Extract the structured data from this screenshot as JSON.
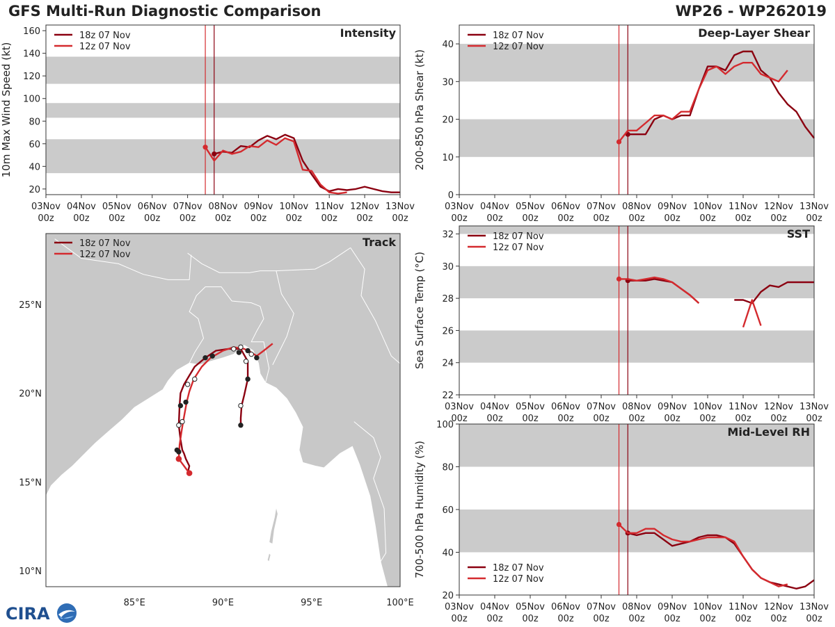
{
  "header": {
    "title": "GFS Multi-Run Diagnostic Comparison",
    "storm": "WP26 - WP262019"
  },
  "colors": {
    "run_18z": "#8b0010",
    "run_12z": "#d42a2e",
    "band": "#cbcbcb",
    "land": "#c8c8c8",
    "marker_dark": "#222222",
    "marker_light": "#ffffff"
  },
  "logo_text": "CIRA",
  "runs": [
    "18z 07 Nov",
    "12z 07 Nov"
  ],
  "time_axis": {
    "ticks": [
      "03Nov",
      "04Nov",
      "05Nov",
      "06Nov",
      "07Nov",
      "08Nov",
      "09Nov",
      "10Nov",
      "11Nov",
      "12Nov",
      "13Nov"
    ],
    "sub": "00z",
    "init_lines": [
      4.5,
      4.75
    ]
  },
  "chart_data": [
    {
      "id": "intensity",
      "type": "line",
      "title": "Intensity",
      "ylabel": "10m Max Wind Speed (kt)",
      "ylim": [
        15,
        165
      ],
      "yticks": [
        20,
        40,
        60,
        80,
        100,
        120,
        140,
        160
      ],
      "bands": [
        [
          34,
          64
        ],
        [
          83,
          96
        ],
        [
          113,
          137
        ]
      ],
      "legend": "top-left",
      "series": [
        {
          "name": "18z 07 Nov",
          "x": [
            4.75,
            5.0,
            5.25,
            5.5,
            5.75,
            6.0,
            6.25,
            6.5,
            6.75,
            7.0,
            7.25,
            7.5,
            7.75,
            8.0,
            8.25,
            8.5,
            8.75,
            9.0,
            9.25,
            9.5,
            9.75,
            10.0
          ],
          "y": [
            51,
            53,
            52,
            58,
            57,
            63,
            67,
            64,
            68,
            65,
            45,
            33,
            22,
            18,
            20,
            19,
            20,
            22,
            20,
            18,
            17,
            17
          ]
        },
        {
          "name": "12z 07 Nov",
          "x": [
            4.5,
            4.75,
            5.0,
            5.25,
            5.5,
            5.75,
            6.0,
            6.25,
            6.5,
            6.75,
            7.0,
            7.25,
            7.5,
            7.75,
            8.0,
            8.25,
            8.5
          ],
          "y": [
            57,
            45,
            54,
            51,
            53,
            58,
            57,
            63,
            59,
            65,
            62,
            37,
            36,
            24,
            17,
            16,
            17
          ]
        }
      ]
    },
    {
      "id": "shear",
      "type": "line",
      "title": "Deep-Layer Shear",
      "ylabel": "200-850 hPa Shear (kt)",
      "ylim": [
        0,
        45
      ],
      "yticks": [
        0,
        10,
        20,
        30,
        40
      ],
      "bands": [
        [
          10,
          20
        ],
        [
          30,
          40
        ]
      ],
      "legend": "top-left",
      "series": [
        {
          "name": "18z 07 Nov",
          "x": [
            4.75,
            5.0,
            5.25,
            5.5,
            5.75,
            6.0,
            6.25,
            6.5,
            6.75,
            7.0,
            7.25,
            7.5,
            7.75,
            8.0,
            8.25,
            8.5,
            8.75,
            9.0,
            9.25,
            9.5,
            9.75,
            10.0
          ],
          "y": [
            16,
            16,
            16,
            20,
            21,
            20,
            21,
            21,
            28,
            34,
            34,
            33,
            37,
            38,
            38,
            33,
            31,
            27,
            24,
            22,
            18,
            15
          ]
        },
        {
          "name": "12z 07 Nov",
          "x": [
            4.5,
            4.75,
            5.0,
            5.25,
            5.5,
            5.75,
            6.0,
            6.25,
            6.5,
            6.75,
            7.0,
            7.25,
            7.5,
            7.75,
            8.0,
            8.25,
            8.5,
            8.75,
            9.0,
            9.25
          ],
          "y": [
            14,
            17,
            17,
            19,
            21,
            21,
            20,
            22,
            22,
            28,
            33,
            34,
            32,
            34,
            35,
            35,
            32,
            31,
            30,
            33
          ]
        }
      ]
    },
    {
      "id": "sst",
      "type": "line",
      "title": "SST",
      "ylabel": "Sea Surface Temp (°C)",
      "ylim": [
        22,
        32.5
      ],
      "yticks": [
        22,
        24,
        26,
        28,
        30,
        32
      ],
      "bands": [
        [
          24,
          26
        ],
        [
          28,
          30
        ],
        [
          32,
          32.5
        ]
      ],
      "legend": "top-left",
      "series": [
        {
          "name": "18z 07 Nov",
          "segments": [
            {
              "x": [
                4.75,
                5.0,
                5.25,
                5.5,
                5.75,
                6.0,
                6.25,
                6.5,
                6.75
              ],
              "y": [
                29.1,
                29.1,
                29.1,
                29.2,
                29.1,
                29.0,
                28.6,
                28.2,
                27.7
              ]
            },
            {
              "x": [
                7.75,
                8.0,
                8.25,
                8.5,
                8.75,
                9.0,
                9.25,
                9.5,
                9.75,
                10.0
              ],
              "y": [
                27.9,
                27.9,
                27.7,
                28.4,
                28.8,
                28.7,
                29.0,
                29.0,
                29.0,
                29.0
              ]
            }
          ]
        },
        {
          "name": "12z 07 Nov",
          "segments": [
            {
              "x": [
                4.5,
                4.75,
                5.0,
                5.25,
                5.5,
                5.75,
                6.0,
                6.25,
                6.5,
                6.75
              ],
              "y": [
                29.2,
                29.2,
                29.1,
                29.2,
                29.3,
                29.2,
                29.0,
                28.6,
                28.2,
                27.7
              ]
            },
            {
              "x": [
                8.0,
                8.25,
                8.5
              ],
              "y": [
                26.2,
                27.9,
                26.3
              ]
            }
          ]
        }
      ]
    },
    {
      "id": "rh",
      "type": "line",
      "title": "Mid-Level RH",
      "ylabel": "700-500 hPa Humidity (%)",
      "ylim": [
        20,
        100
      ],
      "yticks": [
        20,
        40,
        60,
        80,
        100
      ],
      "bands": [
        [
          40,
          60
        ],
        [
          80,
          100
        ]
      ],
      "legend": "bottom-left",
      "series": [
        {
          "name": "18z 07 Nov",
          "x": [
            4.75,
            5.0,
            5.25,
            5.5,
            5.75,
            6.0,
            6.25,
            6.5,
            6.75,
            7.0,
            7.25,
            7.5,
            7.75,
            8.0,
            8.25,
            8.5,
            8.75,
            9.0,
            9.25,
            9.5,
            9.75,
            10.0
          ],
          "y": [
            49,
            48,
            49,
            49,
            46,
            43,
            44,
            45,
            47,
            48,
            48,
            47,
            44,
            38,
            32,
            28,
            26,
            25,
            24,
            23,
            24,
            27
          ]
        },
        {
          "name": "12z 07 Nov",
          "x": [
            4.5,
            4.75,
            5.0,
            5.25,
            5.5,
            5.75,
            6.0,
            6.25,
            6.5,
            6.75,
            7.0,
            7.25,
            7.5,
            7.75,
            8.0,
            8.25,
            8.5,
            8.75,
            9.0,
            9.25
          ],
          "y": [
            53,
            49,
            49,
            51,
            51,
            48,
            46,
            45,
            45,
            46,
            47,
            47,
            47,
            45,
            38,
            32,
            28,
            26,
            24,
            25
          ]
        }
      ]
    },
    {
      "id": "track",
      "type": "scatter",
      "title": "Track",
      "xlim": [
        80.0,
        100.0
      ],
      "ylim": [
        9.1,
        29.0
      ],
      "xticks": [
        85,
        90,
        95,
        100
      ],
      "xtick_labels": [
        "85°E",
        "90°E",
        "95°E",
        "100°E"
      ],
      "yticks": [
        10,
        15,
        20,
        25
      ],
      "ytick_labels": [
        "10°N",
        "15°N",
        "20°N",
        "25°N"
      ],
      "legend": "top-left",
      "series": [
        {
          "name": "18z 07 Nov",
          "lon": [
            88.0,
            88.1,
            87.9,
            87.8,
            87.7,
            87.6,
            87.5,
            87.55,
            87.6,
            87.8,
            88.1,
            88.4,
            89.0,
            89.6,
            90.3,
            91.0,
            91.4,
            91.4,
            91.2,
            91.05,
            91.0,
            91.0
          ],
          "lat": [
            15.5,
            15.9,
            16.3,
            16.6,
            16.8,
            17.4,
            18.2,
            19.3,
            20.0,
            20.5,
            21.0,
            21.5,
            22.0,
            22.4,
            22.5,
            22.5,
            21.8,
            20.8,
            19.9,
            19.3,
            18.6,
            18.2
          ]
        },
        {
          "name": "12z 07 Nov",
          "lon": [
            88.1,
            87.8,
            87.5,
            87.55,
            87.65,
            87.75,
            87.95,
            88.1,
            88.35,
            88.8,
            89.3,
            90.0,
            90.6,
            91.2,
            91.6,
            91.9,
            92.3,
            92.8
          ],
          "lat": [
            15.5,
            15.9,
            16.3,
            17.1,
            17.8,
            18.4,
            19.5,
            20.1,
            20.8,
            21.5,
            22.0,
            22.4,
            22.6,
            22.5,
            22.3,
            22.1,
            22.4,
            22.8
          ]
        }
      ],
      "markers": [
        {
          "lon": 88.1,
          "lat": 15.5,
          "fill": "run12"
        },
        {
          "lon": 87.5,
          "lat": 16.3,
          "fill": "run12"
        },
        {
          "lon": 87.5,
          "lat": 16.7,
          "fill": "dark"
        },
        {
          "lon": 87.4,
          "lat": 16.8,
          "fill": "dark"
        },
        {
          "lon": 87.5,
          "lat": 18.2,
          "fill": "light"
        },
        {
          "lon": 87.7,
          "lat": 18.4,
          "fill": "light"
        },
        {
          "lon": 87.6,
          "lat": 19.3,
          "fill": "dark"
        },
        {
          "lon": 87.9,
          "lat": 19.5,
          "fill": "dark"
        },
        {
          "lon": 88.0,
          "lat": 20.5,
          "fill": "light"
        },
        {
          "lon": 88.4,
          "lat": 20.8,
          "fill": "light"
        },
        {
          "lon": 89.0,
          "lat": 22.0,
          "fill": "dark"
        },
        {
          "lon": 89.4,
          "lat": 22.1,
          "fill": "dark"
        },
        {
          "lon": 90.6,
          "lat": 22.5,
          "fill": "light"
        },
        {
          "lon": 91.0,
          "lat": 22.6,
          "fill": "light"
        },
        {
          "lon": 90.9,
          "lat": 22.3,
          "fill": "dark"
        },
        {
          "lon": 91.4,
          "lat": 22.4,
          "fill": "dark"
        },
        {
          "lon": 91.6,
          "lat": 22.2,
          "fill": "light"
        },
        {
          "lon": 91.9,
          "lat": 22.0,
          "fill": "dark"
        },
        {
          "lon": 91.3,
          "lat": 21.8,
          "fill": "light"
        },
        {
          "lon": 91.4,
          "lat": 20.8,
          "fill": "dark"
        },
        {
          "lon": 91.0,
          "lat": 19.3,
          "fill": "light"
        },
        {
          "lon": 91.0,
          "lat": 18.2,
          "fill": "dark"
        }
      ]
    }
  ]
}
